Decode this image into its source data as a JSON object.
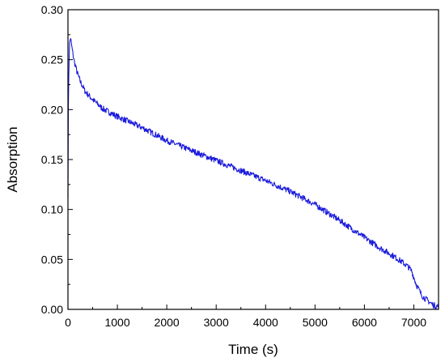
{
  "chart_data": {
    "type": "line",
    "title": "",
    "xlabel": "Time (s)",
    "ylabel": "Absorption",
    "xlim": [
      0,
      7500
    ],
    "ylim": [
      0,
      0.3
    ],
    "xticks": [
      0,
      1000,
      2000,
      3000,
      4000,
      5000,
      6000,
      7000
    ],
    "xtick_labels": [
      "0",
      "1000",
      "2000",
      "3000",
      "4000",
      "5000",
      "6000",
      "7000"
    ],
    "yticks": [
      0,
      0.05,
      0.1,
      0.15,
      0.2,
      0.25,
      0.3
    ],
    "ytick_labels": [
      "0.00",
      "0.05",
      "0.10",
      "0.15",
      "0.20",
      "0.25",
      "0.30"
    ],
    "grid": false,
    "legend": "none",
    "series": [
      {
        "color": "#1a1adc",
        "noise_amplitude": 0.003,
        "x": [
          0,
          10,
          30,
          50,
          80,
          120,
          180,
          250,
          350,
          500,
          700,
          1000,
          1500,
          2000,
          2500,
          3000,
          3500,
          4000,
          4500,
          5000,
          5500,
          6000,
          6300,
          6600,
          6800,
          6900,
          6960,
          7000,
          7050,
          7100,
          7150,
          7200,
          7300,
          7400,
          7500
        ],
        "y": [
          0.115,
          0.22,
          0.265,
          0.272,
          0.262,
          0.25,
          0.238,
          0.228,
          0.218,
          0.21,
          0.201,
          0.193,
          0.182,
          0.169,
          0.159,
          0.149,
          0.139,
          0.129,
          0.118,
          0.105,
          0.089,
          0.072,
          0.062,
          0.053,
          0.046,
          0.042,
          0.038,
          0.032,
          0.025,
          0.02,
          0.015,
          0.012,
          0.008,
          0.004,
          0.003
        ]
      }
    ]
  }
}
